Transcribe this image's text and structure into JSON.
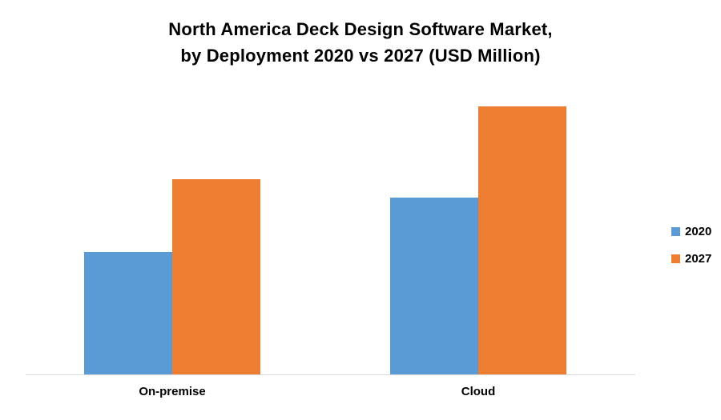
{
  "title": {
    "line1": "North America Deck Design Software Market,",
    "line2": "by Deployment 2020 vs 2027 (USD Million)"
  },
  "chart_data": {
    "type": "bar",
    "title": "North America Deck Design Software Market, by Deployment 2020 vs 2027 (USD Million)",
    "categories": [
      "On-premise",
      "Cloud"
    ],
    "series": [
      {
        "name": "2020",
        "color": "#5B9BD5",
        "values": [
          153,
          221
        ]
      },
      {
        "name": "2027",
        "color": "#ED7D31",
        "values": [
          244,
          335
        ]
      }
    ],
    "xlabel": "",
    "ylabel": "",
    "ylim": [
      0,
      360
    ],
    "grid": false,
    "legend_position": "right"
  },
  "colors": {
    "axis_line": "#d9d9d9",
    "text": "#000000",
    "background": "#ffffff"
  }
}
